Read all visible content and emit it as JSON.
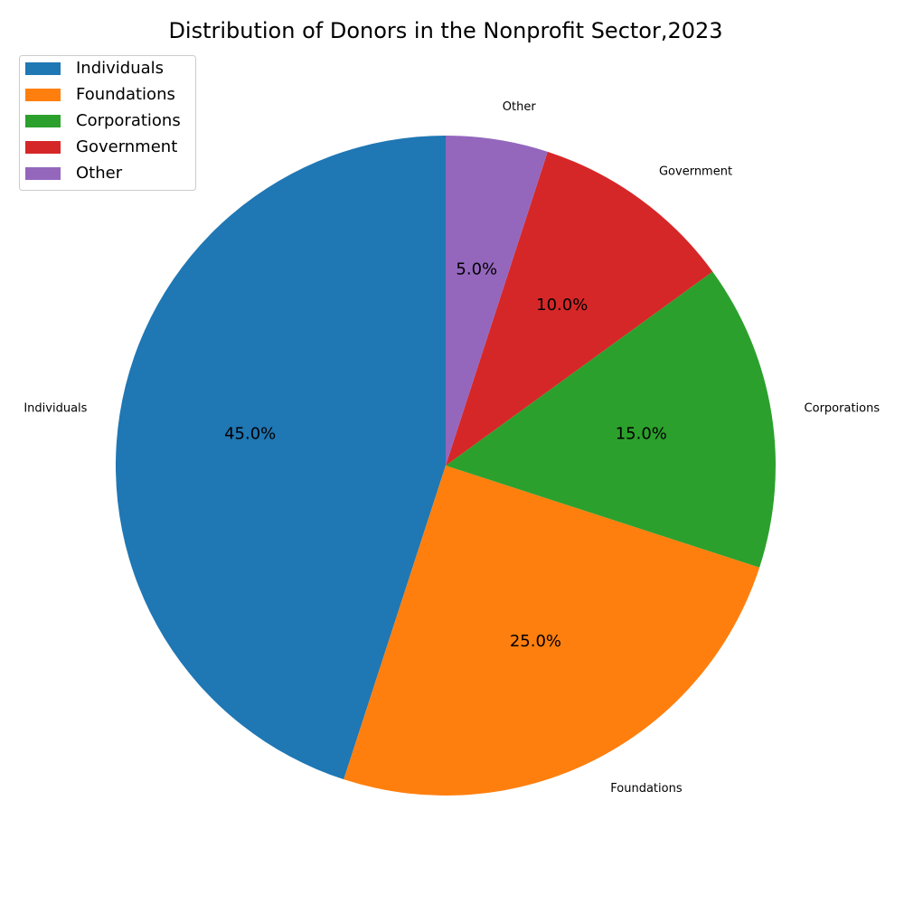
{
  "chart_data": {
    "type": "pie",
    "title": "Distribution of Donors in the Nonprofit Sector,2023",
    "categories": [
      "Individuals",
      "Foundations",
      "Corporations",
      "Government",
      "Other"
    ],
    "values": [
      45,
      25,
      15,
      10,
      5
    ],
    "percent_labels": [
      "45.0%",
      "25.0%",
      "15.0%",
      "10.0%",
      "5.0%"
    ],
    "colors": [
      "#1f77b4",
      "#ff7f0e",
      "#2ca02c",
      "#d62728",
      "#9467bd"
    ],
    "start_angle_deg": 90,
    "direction": "counterclockwise",
    "legend": {
      "placement": "top-left",
      "entries": [
        "Individuals",
        "Foundations",
        "Corporations",
        "Government",
        "Other"
      ]
    }
  }
}
